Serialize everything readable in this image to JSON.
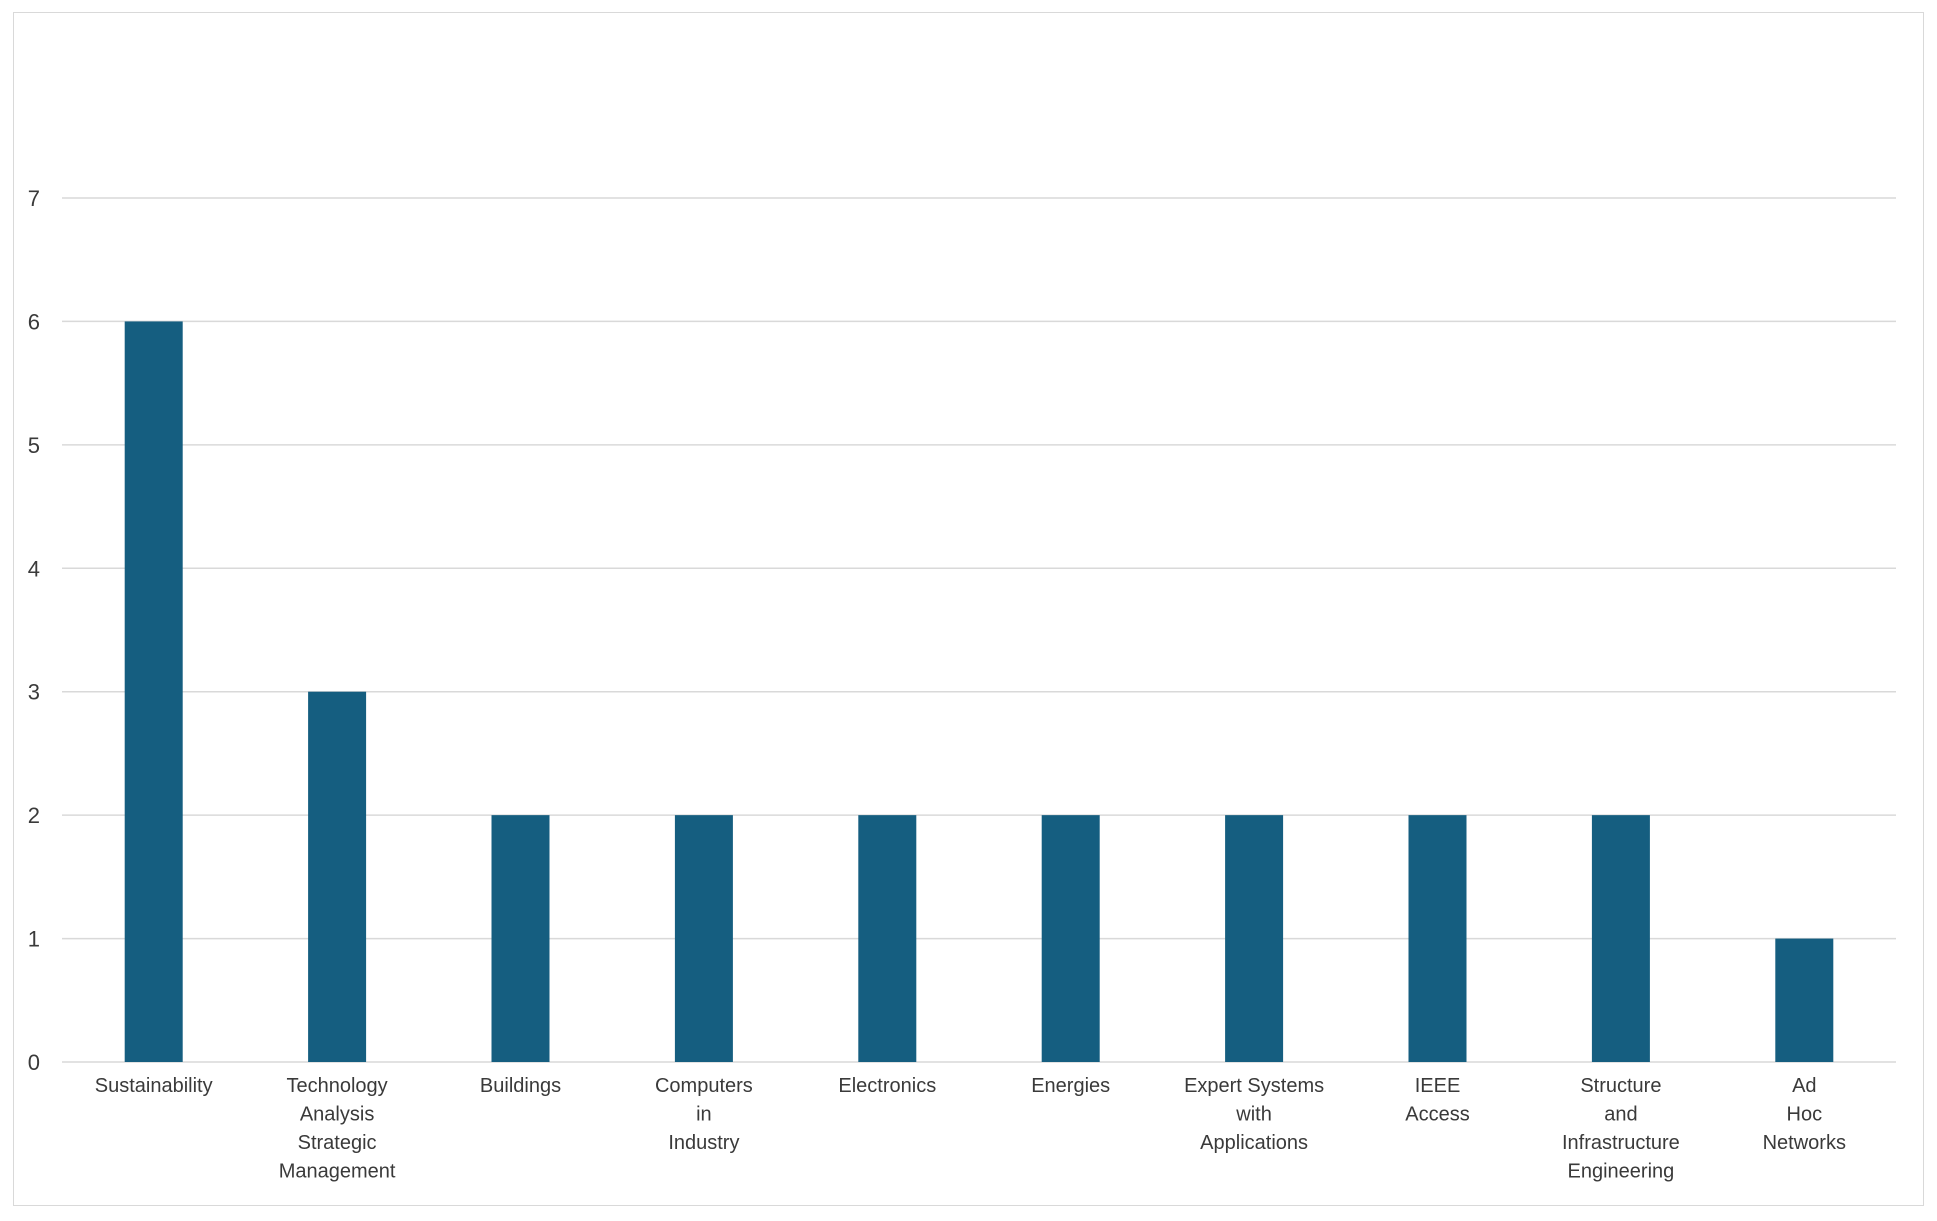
{
  "chart_data": {
    "type": "bar",
    "categories": [
      [
        "Sustainability"
      ],
      [
        "Technology",
        "Analysis",
        "Strategic",
        "Management"
      ],
      [
        "Buildings"
      ],
      [
        "Computers",
        "in",
        "Industry"
      ],
      [
        "Electronics"
      ],
      [
        "Energies"
      ],
      [
        "Expert Systems",
        "with",
        "Applications"
      ],
      [
        "IEEE",
        "Access"
      ],
      [
        "Structure",
        "and",
        "Infrastructure",
        "Engineering"
      ],
      [
        "Ad",
        "Hoc",
        "Networks"
      ]
    ],
    "values": [
      6,
      3,
      2,
      2,
      2,
      2,
      2,
      2,
      2,
      1
    ],
    "title": "",
    "xlabel": "",
    "ylabel": "",
    "ylim": [
      0,
      7
    ],
    "yticks": [
      "0",
      "1",
      "2",
      "3",
      "4",
      "5",
      "6",
      "7"
    ],
    "grid": true,
    "legend": "none",
    "colors": {
      "bar": "#155e80",
      "grid": "#d9d9d9",
      "text": "#3a3a3a",
      "border": "#d9d9d9"
    }
  }
}
